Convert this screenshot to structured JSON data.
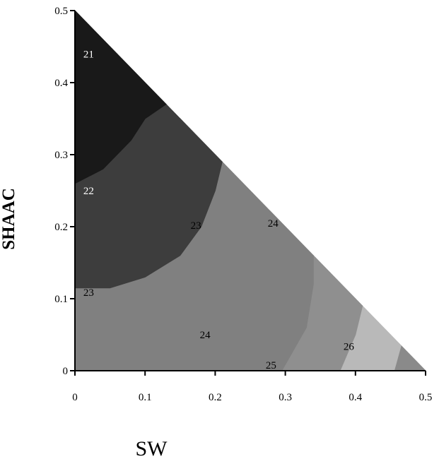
{
  "chart_data": {
    "type": "contour",
    "xlabel": "SW",
    "ylabel": "SHAAC",
    "xlim": [
      0,
      0.5
    ],
    "ylim": [
      0,
      0.5
    ],
    "x_ticks": [
      "0",
      "0.1",
      "0.2",
      "0.3",
      "0.4",
      "0.5"
    ],
    "y_ticks": [
      "0",
      "0.1",
      "0.2",
      "0.3",
      "0.4",
      "0.5"
    ],
    "regions": [
      {
        "level": "26+",
        "color": "#8a8a8a",
        "points": [
          [
            0.465,
            0.035
          ],
          [
            0.5,
            0
          ],
          [
            0.455,
            0
          ]
        ]
      },
      {
        "level": "26",
        "color": "#b9b9b9",
        "points": [
          [
            0.41,
            0.09
          ],
          [
            0.465,
            0.035
          ],
          [
            0.455,
            0
          ],
          [
            0.378,
            0
          ],
          [
            0.4,
            0.05
          ]
        ]
      },
      {
        "level": "25-26",
        "color": "#8f8f8f",
        "points": [
          [
            0.34,
            0.16
          ],
          [
            0.41,
            0.09
          ],
          [
            0.4,
            0.05
          ],
          [
            0.378,
            0
          ],
          [
            0.295,
            0
          ],
          [
            0.33,
            0.06
          ],
          [
            0.34,
            0.12
          ]
        ]
      },
      {
        "level": "24-25",
        "color": "#808080",
        "points": [
          [
            0.21,
            0.29
          ],
          [
            0.34,
            0.16
          ],
          [
            0.34,
            0.12
          ],
          [
            0.33,
            0.06
          ],
          [
            0.295,
            0
          ],
          [
            0,
            0
          ],
          [
            0,
            0.115
          ],
          [
            0.05,
            0.115
          ],
          [
            0.1,
            0.13
          ],
          [
            0.15,
            0.16
          ],
          [
            0.18,
            0.2
          ],
          [
            0.2,
            0.25
          ]
        ]
      },
      {
        "level": "22-23",
        "color": "#3d3d3d",
        "points": [
          [
            0,
            0.26
          ],
          [
            0.04,
            0.28
          ],
          [
            0.08,
            0.32
          ],
          [
            0.1,
            0.35
          ],
          [
            0.13,
            0.37
          ],
          [
            0.21,
            0.29
          ],
          [
            0.2,
            0.25
          ],
          [
            0.18,
            0.2
          ],
          [
            0.15,
            0.16
          ],
          [
            0.1,
            0.13
          ],
          [
            0.05,
            0.115
          ],
          [
            0,
            0.115
          ]
        ]
      },
      {
        "level": "21-22",
        "color": "#191919",
        "points": [
          [
            0,
            0.5
          ],
          [
            0.13,
            0.37
          ],
          [
            0.1,
            0.35
          ],
          [
            0.08,
            0.32
          ],
          [
            0.04,
            0.28
          ],
          [
            0,
            0.26
          ]
        ]
      }
    ],
    "labels": [
      {
        "text": "21",
        "x": 0.012,
        "y": 0.435,
        "color": "#ffffff"
      },
      {
        "text": "22",
        "x": 0.012,
        "y": 0.245,
        "color": "#ffffff"
      },
      {
        "text": "23",
        "x": 0.165,
        "y": 0.197,
        "color": "#000000"
      },
      {
        "text": "23",
        "x": 0.012,
        "y": 0.104,
        "color": "#000000"
      },
      {
        "text": "24",
        "x": 0.275,
        "y": 0.2,
        "color": "#000000"
      },
      {
        "text": "24",
        "x": 0.178,
        "y": 0.045,
        "color": "#000000"
      },
      {
        "text": "25",
        "x": 0.272,
        "y": 0.003,
        "color": "#000000"
      },
      {
        "text": "26",
        "x": 0.383,
        "y": 0.029,
        "color": "#000000"
      }
    ]
  }
}
